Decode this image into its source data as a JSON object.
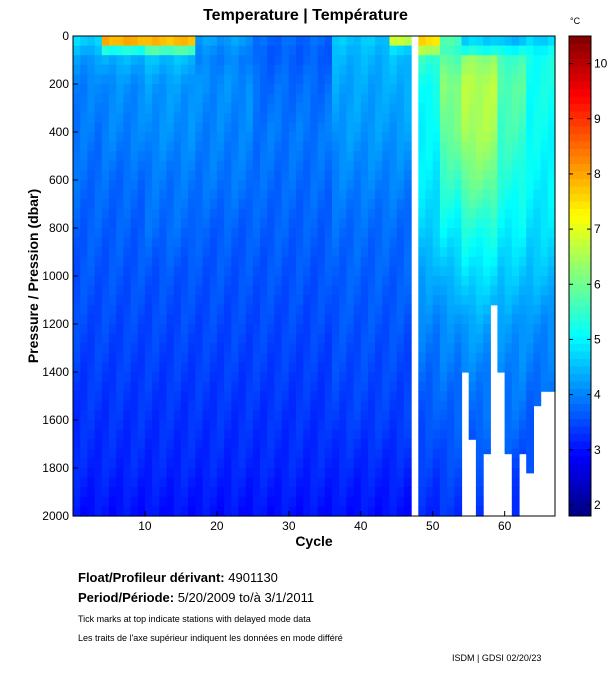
{
  "chart_data": {
    "type": "heatmap",
    "title": "Temperature | Température",
    "xlabel": "Cycle",
    "ylabel": "Pressure / Pression (dbar)",
    "colorbar_unit": "°C",
    "colormap": "jet",
    "xlim": [
      0,
      67
    ],
    "ylim": [
      2000,
      0
    ],
    "clim": [
      1.8,
      10.5
    ],
    "xticks": [
      10,
      20,
      30,
      40,
      50,
      60
    ],
    "yticks": [
      0,
      200,
      400,
      600,
      800,
      1000,
      1200,
      1400,
      1600,
      1800,
      2000
    ],
    "cticks": [
      2,
      3,
      4,
      5,
      6,
      7,
      8,
      9,
      10
    ],
    "pressure_levels": [
      0,
      50,
      100,
      200,
      400,
      600,
      800,
      1000,
      1200,
      1400,
      1600,
      1800,
      2000
    ],
    "profiles": [
      {
        "cycles": [
          1,
          4
        ],
        "temps": [
          4.8,
          4.5,
          4.2,
          4.0,
          3.9,
          3.8,
          3.7,
          3.6,
          3.5,
          3.4,
          3.3,
          3.2,
          3.0
        ]
      },
      {
        "cycles": [
          5,
          10
        ],
        "temps": [
          9.5,
          5.5,
          4.4,
          4.1,
          4.0,
          3.8,
          3.7,
          3.6,
          3.5,
          3.4,
          3.3,
          3.2,
          3.0
        ]
      },
      {
        "cycles": [
          11,
          17
        ],
        "temps": [
          9.0,
          6.0,
          4.5,
          4.2,
          4.1,
          3.9,
          3.8,
          3.6,
          3.5,
          3.4,
          3.3,
          3.2,
          3.0
        ]
      },
      {
        "cycles": [
          18,
          25
        ],
        "temps": [
          4.3,
          4.1,
          4.0,
          4.1,
          4.0,
          3.9,
          3.7,
          3.6,
          3.5,
          3.4,
          3.3,
          3.2,
          3.0
        ]
      },
      {
        "cycles": [
          26,
          36
        ],
        "temps": [
          3.8,
          3.7,
          3.7,
          3.8,
          3.9,
          3.8,
          3.7,
          3.6,
          3.5,
          3.4,
          3.3,
          3.2,
          3.0
        ]
      },
      {
        "cycles": [
          37,
          44
        ],
        "temps": [
          4.6,
          4.5,
          4.4,
          4.3,
          4.2,
          4.0,
          3.8,
          3.7,
          3.6,
          3.5,
          3.4,
          3.2,
          3.0
        ]
      },
      {
        "cycles": [
          45,
          47
        ],
        "temps": [
          8.0,
          4.8,
          4.5,
          4.4,
          4.2,
          4.0,
          3.8,
          3.7,
          3.6,
          3.5,
          3.4,
          3.2,
          3.0
        ]
      },
      {
        "cycles": [
          49,
          51
        ],
        "temps": [
          8.0,
          6.8,
          5.5,
          5.2,
          5.0,
          4.9,
          4.7,
          4.3,
          4.0,
          3.8,
          3.6,
          3.4,
          3.2
        ]
      },
      {
        "cycles": [
          52,
          54
        ],
        "temps": [
          5.8,
          5.5,
          5.8,
          6.2,
          6.0,
          5.5,
          5.0,
          4.5,
          4.1,
          3.9,
          3.7,
          3.5,
          3.3
        ]
      },
      {
        "cycles": [
          55,
          59
        ],
        "temps": [
          4.5,
          5.0,
          6.3,
          6.6,
          6.5,
          6.0,
          5.3,
          4.8,
          4.3,
          4.0,
          3.8,
          3.5,
          3.3
        ]
      },
      {
        "cycles": [
          60,
          63
        ],
        "temps": [
          4.2,
          5.0,
          5.6,
          5.8,
          5.6,
          5.3,
          5.0,
          4.6,
          4.2,
          4.0,
          3.8,
          3.5,
          3.3
        ]
      },
      {
        "cycles": [
          64,
          67
        ],
        "temps": [
          4.5,
          5.0,
          5.2,
          5.2,
          5.1,
          5.0,
          4.8,
          4.5,
          4.1,
          3.9,
          3.7,
          3.5,
          3.3
        ]
      }
    ],
    "max_pressure": {
      "55": 1400,
      "56": 1680,
      "58": 1740,
      "59": 1120,
      "60": 1400,
      "61": 1740,
      "63": 1740,
      "64": 1820,
      "65": 1540,
      "66": 1480,
      "67": 1480
    },
    "missing_cycles": [
      48
    ],
    "contour_levels": [
      4,
      5,
      6,
      7,
      8
    ],
    "delayed_mode_ticks": true
  },
  "info": {
    "float_label": "Float/Profileur dérivant:",
    "float_id": "4901130",
    "period_label": "Period/Période:",
    "period_value": "5/20/2009  to/à  3/1/2011",
    "note_en": "Tick marks at top indicate stations with delayed mode data",
    "note_fr": "Les traits de l'axe supérieur indiquent les données en mode différé",
    "credit": "ISDM | GDSI 02/20/23"
  }
}
